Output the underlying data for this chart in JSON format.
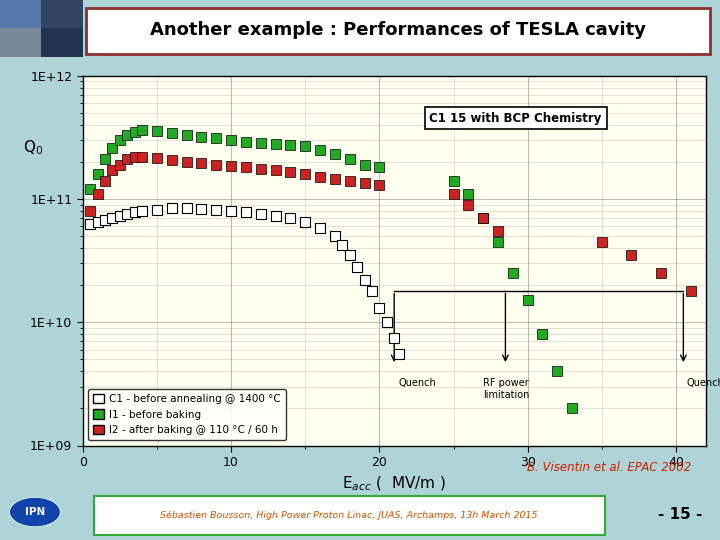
{
  "title": "Another example : Performances of TESLA cavity",
  "slide_bg": "#aed4d8",
  "plot_bg": "#fffff0",
  "title_box_bg": "#ffffff",
  "title_box_edge": "#8b3030",
  "footer_text": "Sébastien Bousson, High Power Proton Linac, JUAS, Archamps, 13h March 2015",
  "footer_page": "- 15 -",
  "xlabel": "E$_{acc}$ (  MV/m )",
  "ylabel": "Q$_0$",
  "xlim": [
    0,
    42
  ],
  "ylim_log": [
    1000000000.0,
    1000000000000.0
  ],
  "citation": "B. Visentin et al. EPAC 2002",
  "bcp_label": "C1 15 with BCP Chemistry",
  "legend_entries": [
    {
      "label": "C1 - before annealing @ 1400 °C",
      "color": "white",
      "edge": "black"
    },
    {
      "label": "I1 - before baking",
      "color": "#22aa22",
      "edge": "black"
    },
    {
      "label": "I2 - after baking @ 110 °C / 60 h",
      "color": "#cc2222",
      "edge": "black"
    }
  ],
  "C1_x": [
    0.5,
    1.0,
    1.5,
    2.0,
    2.5,
    3.0,
    3.5,
    4.0,
    5.0,
    6.0,
    7.0,
    8.0,
    9.0,
    10.0,
    11.0,
    12.0,
    13.0,
    14.0,
    15.0,
    16.0,
    17.0,
    17.5,
    18.0,
    18.5,
    19.0,
    19.5,
    20.0,
    20.5,
    21.0,
    21.3
  ],
  "C1_y": [
    62000000000.0,
    65000000000.0,
    68000000000.0,
    70000000000.0,
    72000000000.0,
    75000000000.0,
    78000000000.0,
    80000000000.0,
    82000000000.0,
    84000000000.0,
    84000000000.0,
    83000000000.0,
    82000000000.0,
    80000000000.0,
    78000000000.0,
    75000000000.0,
    72000000000.0,
    70000000000.0,
    65000000000.0,
    58000000000.0,
    50000000000.0,
    42000000000.0,
    35000000000.0,
    28000000000.0,
    22000000000.0,
    18000000000.0,
    13000000000.0,
    10000000000.0,
    7500000000.0,
    5500000000.0
  ],
  "I1_x": [
    0.5,
    1.0,
    1.5,
    2.0,
    2.5,
    3.0,
    3.5,
    4.0,
    5.0,
    6.0,
    7.0,
    8.0,
    9.0,
    10.0,
    11.0,
    12.0,
    13.0,
    14.0,
    15.0,
    16.0,
    17.0,
    18.0,
    19.0,
    20.0,
    25.0,
    26.0,
    27.0,
    28.0,
    29.0,
    30.0,
    31.0,
    32.0,
    33.0
  ],
  "I1_y": [
    120000000000.0,
    160000000000.0,
    210000000000.0,
    260000000000.0,
    300000000000.0,
    330000000000.0,
    350000000000.0,
    360000000000.0,
    355000000000.0,
    340000000000.0,
    330000000000.0,
    320000000000.0,
    310000000000.0,
    300000000000.0,
    290000000000.0,
    285000000000.0,
    280000000000.0,
    275000000000.0,
    270000000000.0,
    250000000000.0,
    230000000000.0,
    210000000000.0,
    190000000000.0,
    180000000000.0,
    140000000000.0,
    110000000000.0,
    70000000000.0,
    45000000000.0,
    25000000000.0,
    15000000000.0,
    8000000000.0,
    4000000000.0,
    2000000000.0
  ],
  "I2_x": [
    0.5,
    1.0,
    1.5,
    2.0,
    2.5,
    3.0,
    3.5,
    4.0,
    5.0,
    6.0,
    7.0,
    8.0,
    9.0,
    10.0,
    11.0,
    12.0,
    13.0,
    14.0,
    15.0,
    16.0,
    17.0,
    18.0,
    19.0,
    20.0,
    25.0,
    26.0,
    27.0,
    28.0,
    35.0,
    37.0,
    39.0,
    41.0
  ],
  "I2_y": [
    80000000000.0,
    110000000000.0,
    140000000000.0,
    170000000000.0,
    190000000000.0,
    210000000000.0,
    220000000000.0,
    220000000000.0,
    215000000000.0,
    205000000000.0,
    200000000000.0,
    195000000000.0,
    190000000000.0,
    185000000000.0,
    180000000000.0,
    175000000000.0,
    170000000000.0,
    165000000000.0,
    160000000000.0,
    150000000000.0,
    145000000000.0,
    140000000000.0,
    135000000000.0,
    130000000000.0,
    110000000000.0,
    90000000000.0,
    70000000000.0,
    55000000000.0,
    45000000000.0,
    35000000000.0,
    25000000000.0,
    18000000000.0
  ],
  "quench1_x": 21.0,
  "quench_rf_x": 28.5,
  "quench2_x": 40.5,
  "grid_color": "#999999",
  "marker_size": 7
}
